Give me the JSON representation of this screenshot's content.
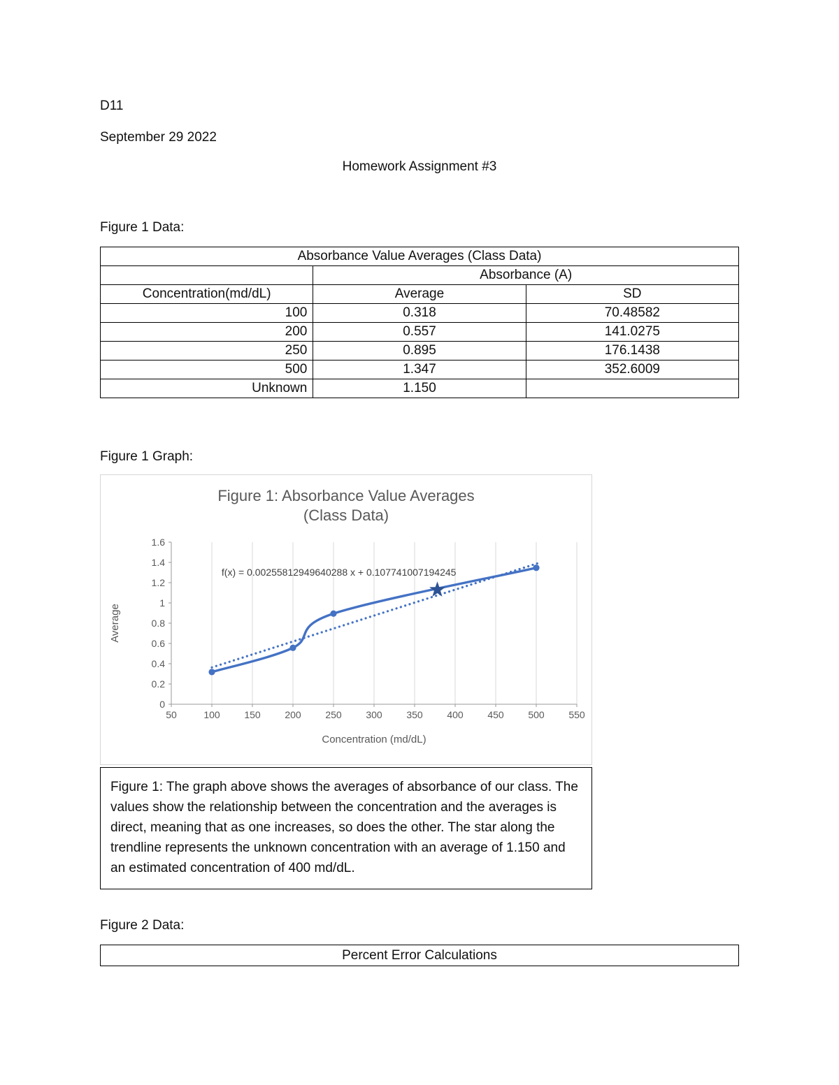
{
  "doc": {
    "id": "D11",
    "date": "September 29 2022",
    "title": "Homework Assignment #3",
    "figure1_data_label": "Figure 1 Data:",
    "figure1_graph_label": "Figure 1 Graph:",
    "figure2_data_label": "Figure 2 Data:"
  },
  "figure1_table": {
    "title": "Absorbance Value Averages (Class Data)",
    "group_header": "Absorbance (A)",
    "columns": [
      "Concentration(md/dL)",
      "Average",
      "SD"
    ],
    "rows": [
      {
        "concentration": "100",
        "average": "0.318",
        "sd": "70.48582"
      },
      {
        "concentration": "200",
        "average": "0.557",
        "sd": "141.0275"
      },
      {
        "concentration": "250",
        "average": "0.895",
        "sd": "176.1438"
      },
      {
        "concentration": "500",
        "average": "1.347",
        "sd": "352.6009"
      },
      {
        "concentration": "Unknown",
        "average": "1.150",
        "sd": ""
      }
    ]
  },
  "chart_data": {
    "type": "line",
    "title": "Figure 1: Absorbance Value Averages",
    "subtitle": "(Class Data)",
    "xlabel": "Concentration (md/dL)",
    "ylabel": "Average",
    "xlim": [
      50,
      550
    ],
    "ylim": [
      0,
      1.6
    ],
    "xticks": [
      50,
      100,
      150,
      200,
      250,
      300,
      350,
      400,
      450,
      500,
      550
    ],
    "ytick_labels": [
      "0",
      "0.2",
      "0.4",
      "0.6",
      "0.8",
      "1",
      "1.2",
      "1.4",
      "1.6"
    ],
    "grid": "vertical",
    "series": [
      {
        "name": "Average (Class Data)",
        "x": [
          100,
          200,
          250,
          500
        ],
        "y": [
          0.318,
          0.557,
          0.895,
          1.347
        ],
        "style": "solid-markers",
        "color": "#4472c4"
      },
      {
        "name": "Linear trendline",
        "equation_text": "f(x) = 0.00255812949640288 x + 0.107741007194245",
        "slope": 0.00255812949640288,
        "intercept": 0.107741007194245,
        "x_range": [
          100,
          505
        ],
        "style": "dotted",
        "color": "#4472c4"
      }
    ],
    "annotation": {
      "text": "f(x) = 0.00255812949640288 x + 0.107741007194245",
      "x": 112,
      "y": 1.27
    },
    "unknown_marker": {
      "shape": "star",
      "x": 378,
      "y": 1.13,
      "color": "#2e5395"
    },
    "legend": "none"
  },
  "figure1_caption": "Figure 1:  The graph above shows the averages of absorbance of our class. The values show the relationship between the concentration and the averages is direct, meaning that as one increases, so does the other. The star along the trendline represents the unknown concentration with an average of 1.150 and an estimated concentration of 400 md/dL.",
  "figure2_table": {
    "title": "Percent Error Calculations"
  }
}
